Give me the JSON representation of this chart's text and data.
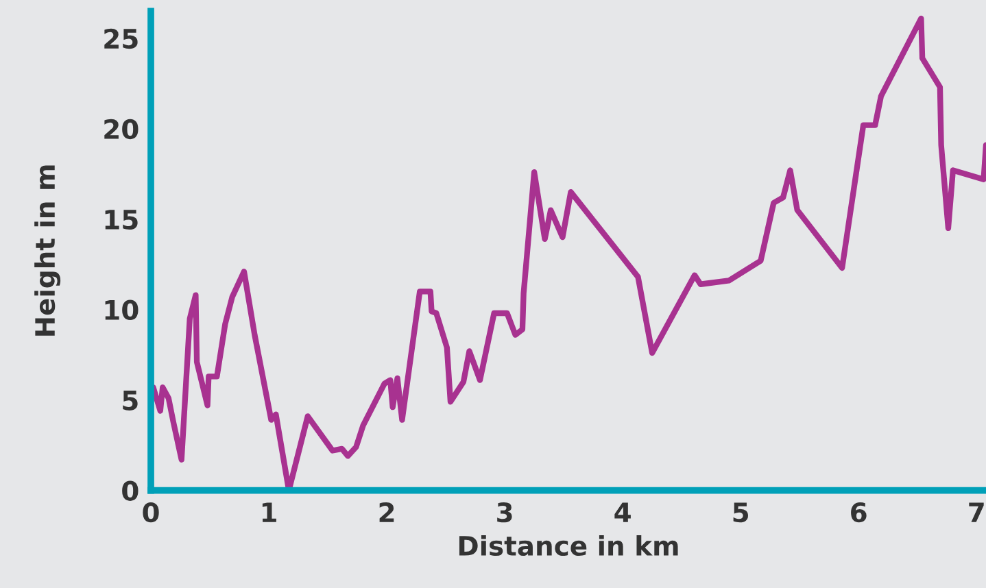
{
  "chart_data": {
    "type": "line",
    "xlabel": "Distance in km",
    "ylabel": "Height in m",
    "xlim": [
      0,
      7.08
    ],
    "ylim": [
      0,
      26.5
    ],
    "xticks": [
      0,
      1,
      2,
      3,
      4,
      5,
      6,
      7
    ],
    "yticks": [
      0,
      5,
      10,
      15,
      20,
      25
    ],
    "grid": false,
    "marker": "none",
    "line_style": "solid",
    "series": [
      {
        "color": "#a83290",
        "x": [
          0.02,
          0.08,
          0.1,
          0.15,
          0.19,
          0.26,
          0.33,
          0.38,
          0.39,
          0.48,
          0.49,
          0.56,
          0.63,
          0.69,
          0.79,
          0.88,
          1.02,
          1.06,
          1.17,
          1.33,
          1.54,
          1.62,
          1.67,
          1.74,
          1.8,
          1.98,
          2.03,
          2.05,
          2.09,
          2.13,
          2.28,
          2.37,
          2.38,
          2.42,
          2.51,
          2.54,
          2.65,
          2.7,
          2.79,
          2.91,
          3.02,
          3.09,
          3.15,
          3.16,
          3.25,
          3.34,
          3.39,
          3.49,
          3.56,
          4.13,
          4.25,
          4.61,
          4.66,
          4.9,
          5.17,
          5.28,
          5.36,
          5.42,
          5.48,
          5.86,
          6.04,
          6.14,
          6.19,
          6.53,
          6.54,
          6.69,
          6.7,
          6.76,
          6.8,
          7.06,
          7.08
        ],
        "values": [
          5.7,
          4.4,
          5.7,
          5.1,
          3.8,
          1.7,
          9.5,
          10.8,
          7.1,
          4.7,
          6.3,
          6.3,
          9.2,
          10.7,
          12.1,
          8.6,
          3.9,
          4.2,
          0,
          4.1,
          2.2,
          2.3,
          1.9,
          2.4,
          3.6,
          5.9,
          6.1,
          4.6,
          6.2,
          3.9,
          11.0,
          11.0,
          9.9,
          9.8,
          7.9,
          4.9,
          6.0,
          7.7,
          6.1,
          9.8,
          9.8,
          8.6,
          8.9,
          10.9,
          17.6,
          13.9,
          15.5,
          14.0,
          16.5,
          11.8,
          7.6,
          11.9,
          11.4,
          11.6,
          12.7,
          15.9,
          16.2,
          17.7,
          15.5,
          12.3,
          20.2,
          20.2,
          21.8,
          26.1,
          23.9,
          22.3,
          19.1,
          14.5,
          17.7,
          17.2,
          19.1
        ]
      }
    ]
  }
}
